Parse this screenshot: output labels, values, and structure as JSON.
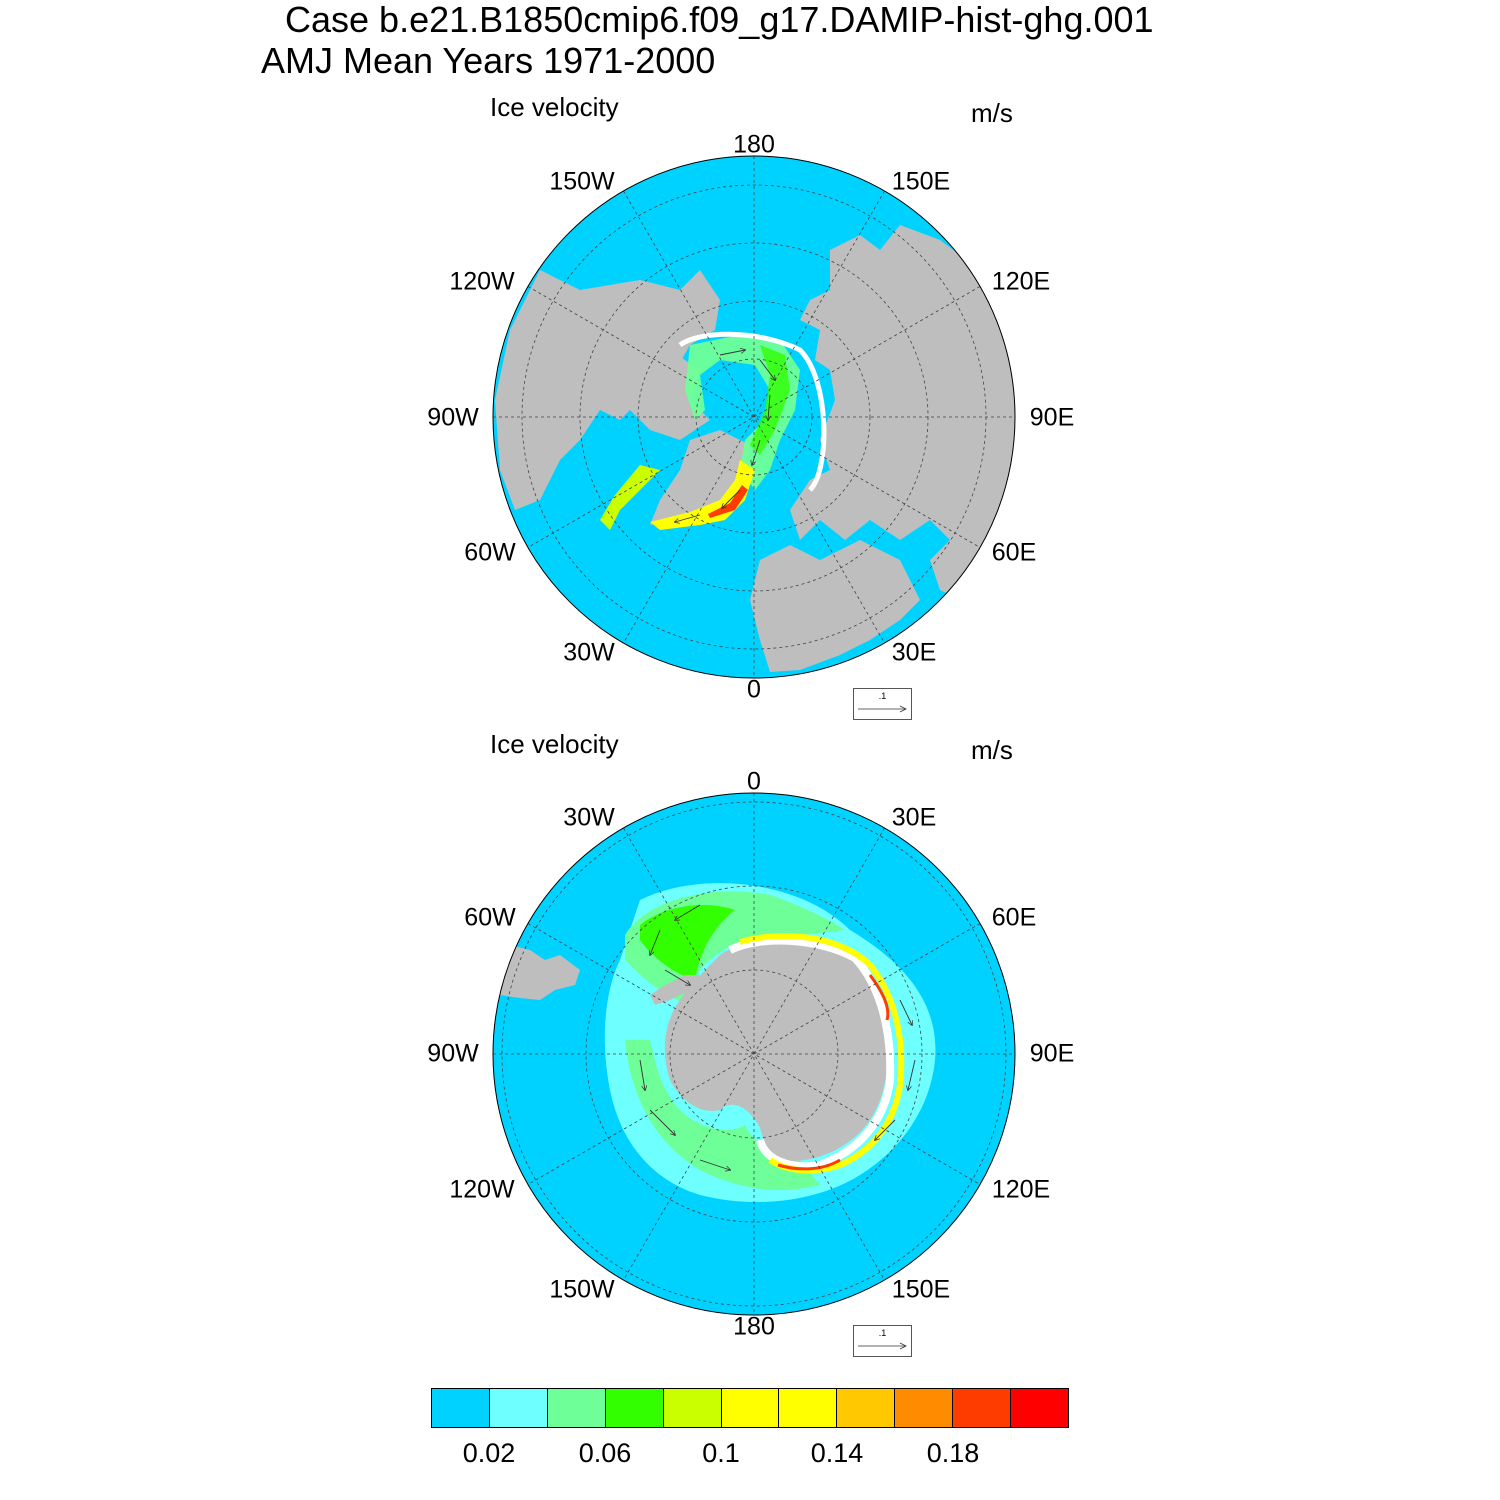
{
  "header": {
    "case_title": "Case b.e21.B1850cmip6.f09_g17.DAMIP-hist-ghg.001",
    "season_title": "AMJ Mean   Years 1971-2000"
  },
  "colors": {
    "ocean": "#00d2ff",
    "land": "#bebebe",
    "ice_edge": "#ffffff"
  },
  "north_panel": {
    "label": "Ice velocity",
    "units": "m/s",
    "lon_labels": [
      "180",
      "150E",
      "120E",
      "90E",
      "60E",
      "30E",
      "0",
      "30W",
      "60W",
      "90W",
      "120W",
      "150W"
    ],
    "ref_vector_value": ".1"
  },
  "south_panel": {
    "label": "Ice velocity",
    "units": "m/s",
    "lon_labels": [
      "0",
      "30E",
      "60E",
      "90E",
      "120E",
      "150E",
      "180",
      "150W",
      "120W",
      "90W",
      "60W",
      "30W"
    ],
    "ref_vector_value": ".1"
  },
  "colorbar": {
    "colors": [
      "#00d2ff",
      "#6effff",
      "#6eff98",
      "#32ff00",
      "#caff00",
      "#ffff00",
      "#ffff00",
      "#ffc800",
      "#ff8c00",
      "#ff3c00",
      "#ff0000"
    ],
    "labels": [
      "0.02",
      "0.06",
      "0.1",
      "0.14",
      "0.18"
    ]
  }
}
